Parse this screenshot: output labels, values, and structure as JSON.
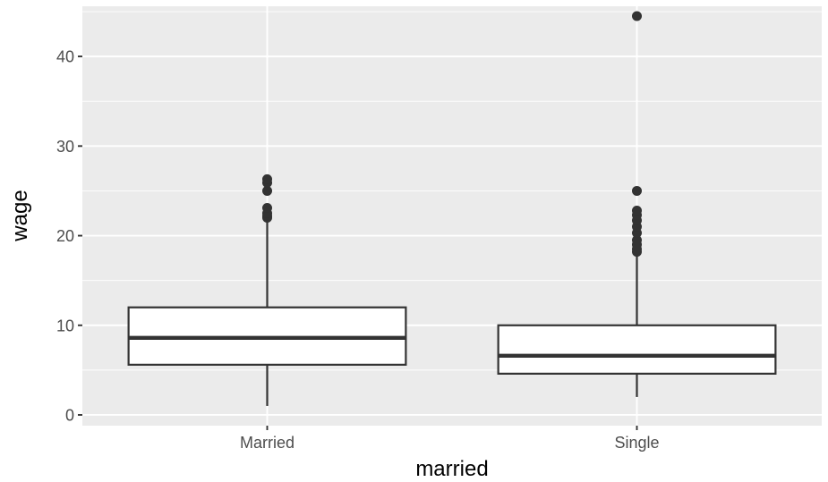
{
  "chart_data": {
    "type": "boxplot",
    "xlabel": "married",
    "ylabel": "wage",
    "ylim": [
      -1.2,
      45.6
    ],
    "yticks": [
      0,
      10,
      20,
      30,
      40
    ],
    "grid": true,
    "legend": "none",
    "categories": [
      "Married",
      "Single"
    ],
    "boxes": [
      {
        "category": "Married",
        "lower_whisker": 1.0,
        "q1": 5.6,
        "median": 8.6,
        "q3": 12.0,
        "upper_whisker": 21.7,
        "outliers": [
          22.0,
          22.2,
          22.5,
          23.1,
          25.0,
          25.9,
          26.3
        ]
      },
      {
        "category": "Single",
        "lower_whisker": 2.0,
        "q1": 4.6,
        "median": 6.6,
        "q3": 10.0,
        "upper_whisker": 17.9,
        "outliers": [
          18.2,
          18.5,
          19.0,
          19.5,
          20.3,
          21.0,
          21.7,
          22.3,
          22.8,
          25.0,
          44.5
        ]
      }
    ],
    "colors": {
      "panel": "#ebebeb",
      "grid": "#ffffff",
      "box_fill": "#ffffff",
      "box_line": "#333333",
      "point": "#333333",
      "tick_text": "#4d4d4d"
    }
  }
}
